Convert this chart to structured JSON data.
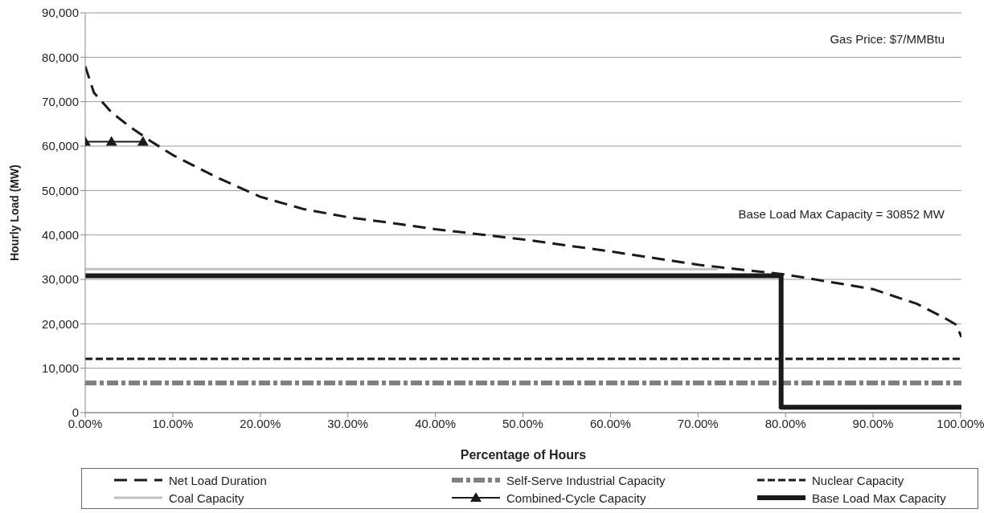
{
  "chart_data": {
    "type": "line",
    "xlabel": "Percentage of Hours",
    "ylabel": "Hourly Load (MW)",
    "annotations": [
      "Gas Price: $7/MMBtu",
      "Base Load Max Capacity = 30852 MW"
    ],
    "xlim": [
      0,
      100.1
    ],
    "xticks": [
      {
        "value": 0,
        "label": "0.00%"
      },
      {
        "value": 10,
        "label": "10.00%"
      },
      {
        "value": 20,
        "label": "20.00%"
      },
      {
        "value": 30,
        "label": "30.00%"
      },
      {
        "value": 40,
        "label": "40.00%"
      },
      {
        "value": 50,
        "label": "50.00%"
      },
      {
        "value": 60,
        "label": "60.00%"
      },
      {
        "value": 70,
        "label": "70.00%"
      },
      {
        "value": 80,
        "label": "80.00%"
      },
      {
        "value": 90,
        "label": "90.00%"
      },
      {
        "value": 100,
        "label": "100.00%"
      }
    ],
    "ylim": [
      0,
      90000
    ],
    "yticks": [
      0,
      {
        "value": 10000,
        "label": "10,000"
      },
      {
        "value": 20000,
        "label": "20,000"
      },
      {
        "value": 30000,
        "label": "30,000"
      },
      {
        "value": 40000,
        "label": "40,000"
      },
      {
        "value": 50000,
        "label": "50,000"
      },
      {
        "value": 60000,
        "label": "60,000"
      },
      {
        "value": 70000,
        "label": "70,000"
      },
      {
        "value": 80000,
        "label": "80,000"
      },
      {
        "value": 90000,
        "label": "90,000"
      }
    ],
    "grid": "y",
    "legend": "bottom",
    "series": [
      {
        "name": "Net Load Duration",
        "color": "#1a1a1a",
        "line_style": "dashed",
        "marker": "none",
        "x": [
          0,
          1,
          3,
          5,
          7.5,
          10,
          15,
          20,
          25,
          30,
          35,
          40,
          50,
          60,
          70,
          80,
          90,
          95,
          98,
          99.5,
          100.1
        ],
        "values": [
          78000,
          72000,
          67600,
          64500,
          61100,
          58000,
          53000,
          48600,
          45800,
          44000,
          42700,
          41300,
          39000,
          36300,
          33300,
          31100,
          27800,
          24500,
          21500,
          19800,
          17000
        ]
      },
      {
        "name": "Self-Serve Industrial Capacity",
        "color": "#808080",
        "line_style": "dashed",
        "marker": "none",
        "x": [
          0,
          100.1
        ],
        "values": [
          6700,
          6700
        ]
      },
      {
        "name": "Nuclear Capacity",
        "color": "#1a1a1a",
        "line_style": "dashed",
        "marker": "none",
        "x": [
          0,
          100.1
        ],
        "values": [
          12100,
          12100
        ]
      },
      {
        "name": "Coal Capacity",
        "color": "#c0c0c0",
        "line_style": "solid",
        "marker": "none",
        "x": [
          0,
          72.3
        ],
        "values": [
          32300,
          32300
        ]
      },
      {
        "name": "Combined-Cycle Capacity",
        "color": "#1a1a1a",
        "line_style": "solid",
        "marker": "triangle",
        "x": [
          0,
          3,
          6.6
        ],
        "values": [
          61000,
          61000,
          61000
        ]
      },
      {
        "name": "Base Load Max Capacity",
        "color": "#1a1a1a",
        "line_style": "solid",
        "marker": "none",
        "x": [
          0,
          79.5,
          79.5,
          100.1
        ],
        "values": [
          30800,
          30800,
          1200,
          1200
        ]
      }
    ]
  }
}
